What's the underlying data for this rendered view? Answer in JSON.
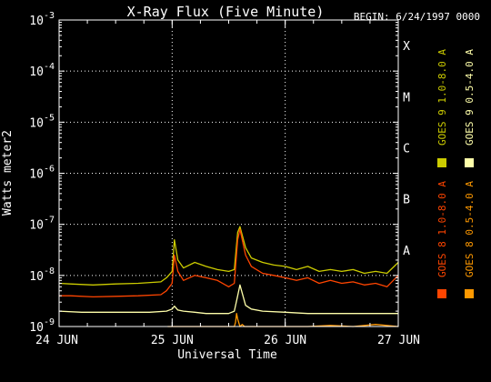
{
  "chart_data": {
    "type": "line",
    "title": "X-Ray Flux (Five Minute)",
    "begin_label": "BEGIN: 6/24/1997 0000",
    "xlabel": "Universal Time",
    "ylabel": "Watts meter2",
    "y_scale": "log",
    "ylim": [
      1e-09,
      0.001
    ],
    "xlim_days": [
      0,
      3
    ],
    "x_tick_labels": [
      "24 JUN",
      "25 JUN",
      "26 JUN",
      "27 JUN"
    ],
    "y_tick_labels": [
      {
        "base": "10",
        "exp": "-9"
      },
      {
        "base": "10",
        "exp": "-8"
      },
      {
        "base": "10",
        "exp": "-7"
      },
      {
        "base": "10",
        "exp": "-6"
      },
      {
        "base": "10",
        "exp": "-5"
      },
      {
        "base": "10",
        "exp": "-4"
      },
      {
        "base": "10",
        "exp": "-3"
      }
    ],
    "flare_classes": [
      {
        "label": "A",
        "level": 1e-08
      },
      {
        "label": "B",
        "level": 1e-07
      },
      {
        "label": "C",
        "level": 1e-06
      },
      {
        "label": "M",
        "level": 1e-05
      },
      {
        "label": "X",
        "level": 0.0001
      }
    ],
    "grid": true,
    "legend_placement": "right",
    "series": [
      {
        "name": "GOES 8 1.0-8.0 A",
        "color": "#ff4500",
        "x": [
          0,
          0.1,
          0.3,
          0.5,
          0.7,
          0.9,
          0.95,
          1.0,
          1.02,
          1.05,
          1.1,
          1.2,
          1.3,
          1.4,
          1.5,
          1.55,
          1.58,
          1.6,
          1.65,
          1.7,
          1.8,
          1.9,
          2.0,
          2.1,
          2.2,
          2.3,
          2.4,
          2.5,
          2.6,
          2.7,
          2.8,
          2.9,
          3.0
        ],
        "y": [
          4e-09,
          4e-09,
          3.8e-09,
          3.9e-09,
          4e-09,
          4.2e-09,
          5e-09,
          7e-09,
          2.5e-08,
          1.2e-08,
          8e-09,
          1e-08,
          9e-09,
          8e-09,
          6e-09,
          7e-09,
          5e-08,
          8e-08,
          2.5e-08,
          1.5e-08,
          1.1e-08,
          1e-08,
          9e-09,
          8e-09,
          9e-09,
          7e-09,
          8e-09,
          7e-09,
          7.5e-09,
          6.5e-09,
          7e-09,
          6e-09,
          1e-08
        ]
      },
      {
        "name": "GOES 8 0.5-4.0 A",
        "color": "#ff9900",
        "x": [
          0.96,
          1.0,
          1.5,
          1.55,
          1.56,
          1.57,
          1.58,
          1.6,
          1.62,
          1.64,
          2.0,
          2.2,
          2.4,
          2.6,
          2.8,
          3.0
        ],
        "y": [
          1e-09,
          1e-09,
          1e-09,
          1e-09,
          1.2e-09,
          1.8e-09,
          1.4e-09,
          1e-09,
          1.1e-09,
          1e-09,
          1e-09,
          1e-09,
          1.05e-09,
          1e-09,
          1.1e-09,
          1e-09
        ]
      },
      {
        "name": "GOES 9 1.0-8.0 A",
        "color": "#cccc00",
        "x": [
          0,
          0.1,
          0.3,
          0.5,
          0.7,
          0.9,
          0.95,
          1.0,
          1.02,
          1.05,
          1.1,
          1.2,
          1.3,
          1.4,
          1.5,
          1.55,
          1.58,
          1.6,
          1.65,
          1.7,
          1.8,
          1.9,
          2.0,
          2.1,
          2.2,
          2.3,
          2.4,
          2.5,
          2.6,
          2.7,
          2.8,
          2.9,
          3.0
        ],
        "y": [
          7e-09,
          6.8e-09,
          6.5e-09,
          6.8e-09,
          7e-09,
          7.5e-09,
          9e-09,
          1.2e-08,
          5e-08,
          2e-08,
          1.4e-08,
          1.8e-08,
          1.5e-08,
          1.3e-08,
          1.2e-08,
          1.3e-08,
          7e-08,
          9e-08,
          3.5e-08,
          2.2e-08,
          1.8e-08,
          1.6e-08,
          1.5e-08,
          1.3e-08,
          1.5e-08,
          1.2e-08,
          1.3e-08,
          1.2e-08,
          1.3e-08,
          1.1e-08,
          1.2e-08,
          1.1e-08,
          1.8e-08
        ]
      },
      {
        "name": "GOES 9 0.5-4.0 A",
        "color": "#ffffaa",
        "x": [
          0,
          0.2,
          0.4,
          0.6,
          0.8,
          0.95,
          1.0,
          1.02,
          1.05,
          1.1,
          1.2,
          1.3,
          1.4,
          1.5,
          1.55,
          1.58,
          1.6,
          1.62,
          1.65,
          1.7,
          1.8,
          2.0,
          2.2,
          2.4,
          2.6,
          2.8,
          3.0
        ],
        "y": [
          2e-09,
          1.9e-09,
          1.9e-09,
          1.9e-09,
          1.9e-09,
          2e-09,
          2.2e-09,
          2.5e-09,
          2.1e-09,
          2e-09,
          1.9e-09,
          1.8e-09,
          1.8e-09,
          1.8e-09,
          2e-09,
          4e-09,
          6.5e-09,
          4.5e-09,
          2.6e-09,
          2.2e-09,
          2e-09,
          1.9e-09,
          1.8e-09,
          1.8e-09,
          1.8e-09,
          1.8e-09,
          1.8e-09
        ]
      }
    ]
  }
}
